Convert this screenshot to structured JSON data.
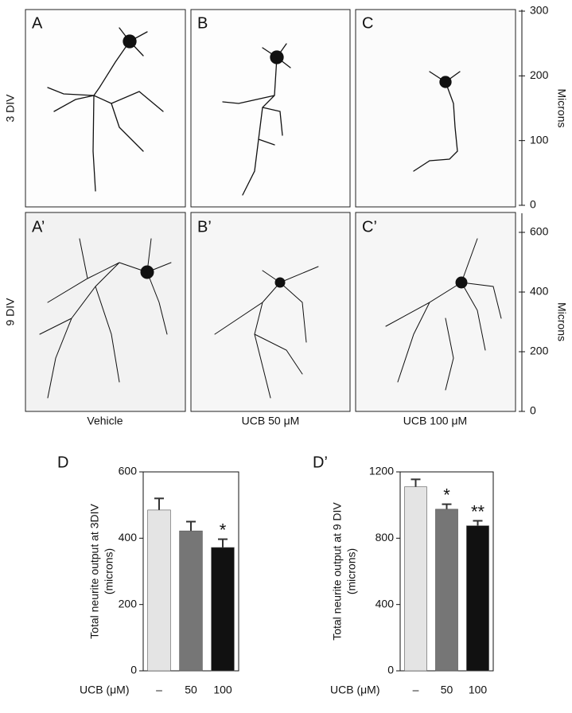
{
  "figure": {
    "panels": [
      "A",
      "B",
      "C",
      "A’",
      "B’",
      "C’"
    ],
    "row_labels": [
      "3 DIV",
      "9 DIV"
    ],
    "column_labels": [
      "Vehicle",
      "UCB 50 μM",
      "UCB 100 μM"
    ],
    "scale_bars": [
      {
        "label": "Microns",
        "ylim": [
          0,
          300
        ],
        "yticks": [
          0,
          100,
          200,
          300
        ]
      },
      {
        "label": "Microns",
        "ylim": [
          0,
          600
        ],
        "yticks": [
          0,
          200,
          400,
          600
        ]
      }
    ]
  },
  "chart_data": [
    {
      "type": "bar",
      "panel_label": "D",
      "ylabel": [
        "Total neurite output at 3DIV",
        "(microns)"
      ],
      "xlabel": "UCB (μM)",
      "categories": [
        "–",
        "50",
        "100"
      ],
      "values": [
        485,
        422,
        372
      ],
      "errors": [
        35,
        28,
        25
      ],
      "colors": [
        "#e4e4e4",
        "#767676",
        "#111111"
      ],
      "annotations": [
        null,
        null,
        "*"
      ],
      "ylim": [
        0,
        600
      ],
      "yticks": [
        0,
        200,
        400,
        600
      ]
    },
    {
      "type": "bar",
      "panel_label": "D’",
      "ylabel": [
        "Total neurite output at 9 DIV",
        "(microns)"
      ],
      "xlabel": "UCB (μM)",
      "categories": [
        "–",
        "50",
        "100"
      ],
      "values": [
        1110,
        975,
        875
      ],
      "errors": [
        45,
        30,
        30
      ],
      "colors": [
        "#e4e4e4",
        "#767676",
        "#111111"
      ],
      "annotations": [
        null,
        "*",
        "**"
      ],
      "ylim": [
        0,
        1200
      ],
      "yticks": [
        0,
        400,
        800,
        1200
      ]
    }
  ]
}
